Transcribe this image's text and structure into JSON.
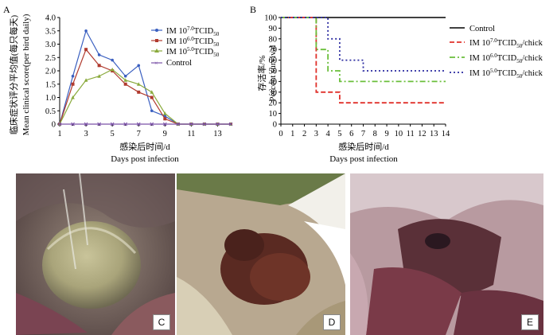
{
  "panels": {
    "A": {
      "label": "A"
    },
    "B": {
      "label": "B"
    },
    "C": {
      "label": "C"
    },
    "D": {
      "label": "D"
    },
    "E": {
      "label": "E"
    }
  },
  "chart_data": [
    {
      "panel": "A",
      "type": "line",
      "ylabel_cn": "临床症状评分平均值(每只每天)",
      "ylabel_en": "Mean clinical score(per bird daily)",
      "xlabel_cn": "感染后时间/d",
      "xlabel_en": "Days post infection",
      "xlim": [
        1,
        14
      ],
      "ylim": [
        0,
        4.0
      ],
      "xticks": [
        "1",
        "3",
        "5",
        "7",
        "9",
        "11",
        "13"
      ],
      "yticks": [
        "0",
        "0.5",
        "1.0",
        "1.5",
        "2.0",
        "2.5",
        "3.0",
        "3.5",
        "4.0"
      ],
      "legend_position": "top-right",
      "series": [
        {
          "name": "IM 10^7.0TCID50",
          "color": "#3a5fc0",
          "x": [
            1,
            2,
            3,
            4,
            5,
            6,
            7,
            8,
            9,
            10,
            11,
            12,
            13,
            14
          ],
          "values": [
            0,
            1.8,
            3.5,
            2.6,
            2.4,
            1.8,
            2.2,
            0.5,
            0.3,
            0,
            0,
            0,
            0,
            0
          ]
        },
        {
          "name": "IM 10^6.0TCID50",
          "color": "#b03a2e",
          "x": [
            1,
            2,
            3,
            4,
            5,
            6,
            7,
            8,
            9,
            10,
            11,
            12,
            13,
            14
          ],
          "values": [
            0,
            1.5,
            2.8,
            2.2,
            2.0,
            1.5,
            1.2,
            1.0,
            0.2,
            0,
            0,
            0,
            0,
            0
          ]
        },
        {
          "name": "IM 10^5.0TCID50",
          "color": "#8aaa3c",
          "x": [
            1,
            2,
            3,
            4,
            5,
            6,
            7,
            8,
            9,
            10,
            11,
            12,
            13,
            14
          ],
          "values": [
            0,
            1.0,
            1.65,
            1.8,
            2.05,
            1.65,
            1.5,
            1.2,
            0.4,
            0,
            0,
            0,
            0,
            0
          ]
        },
        {
          "name": "Control",
          "color": "#7b52a8",
          "x": [
            1,
            2,
            3,
            4,
            5,
            6,
            7,
            8,
            9,
            10,
            11,
            12,
            13,
            14
          ],
          "values": [
            0,
            0,
            0,
            0,
            0,
            0,
            0,
            0,
            0,
            0,
            0,
            0,
            0,
            0
          ]
        }
      ]
    },
    {
      "panel": "B",
      "type": "line",
      "ylabel_cn": "存活率/%",
      "ylabel_en": "Percent survival",
      "xlabel_cn": "感染后时间/d",
      "xlabel_en": "Days post infection",
      "xlim": [
        0,
        14
      ],
      "ylim": [
        0,
        100
      ],
      "xticks": [
        "0",
        "1",
        "2",
        "3",
        "4",
        "5",
        "6",
        "7",
        "8",
        "9",
        "10",
        "11",
        "12",
        "13",
        "14"
      ],
      "yticks": [
        "0",
        "10",
        "20",
        "30",
        "40",
        "50",
        "60",
        "70",
        "80",
        "90",
        "100"
      ],
      "step": true,
      "legend_position": "right",
      "series": [
        {
          "name": "Control",
          "color": "#000000",
          "dash": "",
          "x": [
            0,
            14
          ],
          "values": [
            100,
            100
          ]
        },
        {
          "name": "IM 10^7.0TCID50/chick",
          "color": "#e0302a",
          "dash": "6,3",
          "x": [
            0,
            3,
            5,
            14
          ],
          "values": [
            100,
            30,
            20,
            20
          ]
        },
        {
          "name": "IM 10^6.0TCID50/chick",
          "color": "#6abf3a",
          "dash": "7,3,2,3",
          "x": [
            0,
            3,
            4,
            5,
            14
          ],
          "values": [
            100,
            70,
            50,
            40,
            40
          ]
        },
        {
          "name": "IM 10^5.0TCID50/chick",
          "color": "#2a2aa0",
          "dash": "2,3",
          "x": [
            0,
            4,
            5,
            7,
            14
          ],
          "values": [
            100,
            80,
            60,
            50,
            50
          ]
        }
      ]
    }
  ]
}
